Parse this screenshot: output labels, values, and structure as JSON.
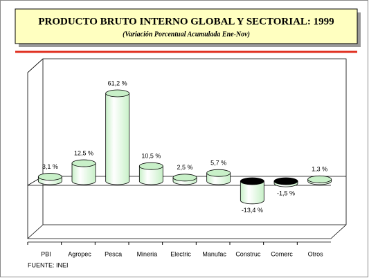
{
  "chart_data": {
    "type": "bar",
    "title": "PRODUCTO BRUTO INTERNO GLOBAL Y SECTORIAL: 1999",
    "subtitle": "(Variación Porcentual Acumulada Ene-Nov)",
    "categories": [
      "PBI",
      "Agropec",
      "Pesca",
      "Mineria",
      "Electric",
      "Manufac",
      "Construc",
      "Comerc",
      "Otros"
    ],
    "values": [
      3.1,
      12.5,
      61.2,
      10.5,
      2.5,
      5.7,
      -13.4,
      -1.5,
      1.3
    ],
    "value_labels": [
      "3,1 %",
      "12,5 %",
      "61,2 %",
      "10,5 %",
      "2,5 %",
      "5,7 %",
      "-13,4 %",
      "-1,5 %",
      "1,3 %"
    ],
    "color": "#c8f0c8",
    "source": "FUENTE: INEI"
  }
}
